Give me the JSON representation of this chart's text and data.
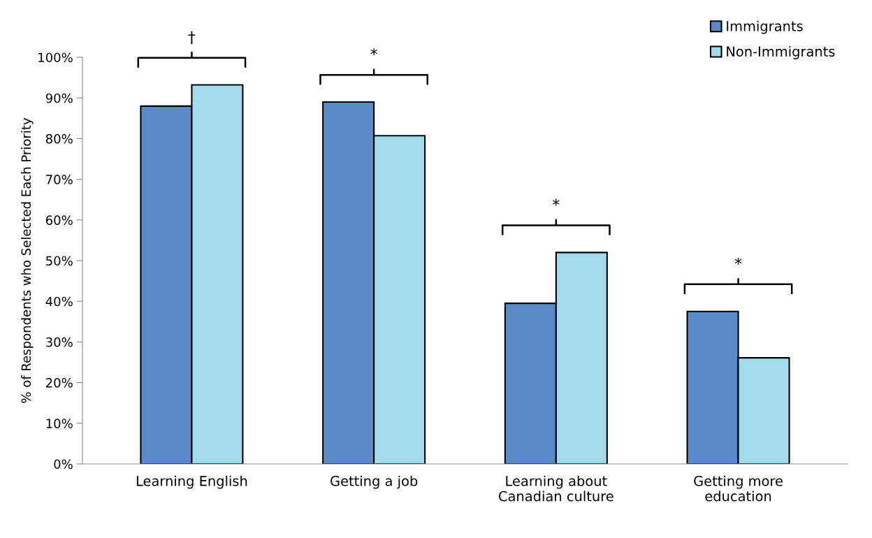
{
  "chart_data": {
    "type": "bar",
    "ylabel": "% of Respondents who Selected Each Priority",
    "categories": [
      "Learning English",
      "Getting a job",
      "Learning about\nCanadian culture",
      "Getting more\neducation"
    ],
    "series": [
      {
        "name": "Immigrants",
        "color": "#5a8bc8",
        "values": [
          88.0,
          89.0,
          39.5,
          37.5
        ]
      },
      {
        "name": "Non-Immigrants",
        "color": "#a1dbec",
        "values": [
          93.2,
          80.7,
          52.0,
          26.1
        ]
      }
    ],
    "ylim": [
      0,
      100
    ],
    "yticks": [
      {
        "value": 0,
        "label": "0%"
      },
      {
        "value": 10,
        "label": "10%"
      },
      {
        "value": 20,
        "label": "20%"
      },
      {
        "value": 30,
        "label": "30%"
      },
      {
        "value": 40,
        "label": "40%"
      },
      {
        "value": 50,
        "label": "50%"
      },
      {
        "value": 60,
        "label": "60%"
      },
      {
        "value": 70,
        "label": "70%"
      },
      {
        "value": 80,
        "label": "80%"
      },
      {
        "value": 90,
        "label": "90%"
      },
      {
        "value": 100,
        "label": "100%"
      }
    ],
    "annotations": [
      "†",
      "*",
      "*",
      "*"
    ],
    "grid": false,
    "legend": "top right"
  }
}
